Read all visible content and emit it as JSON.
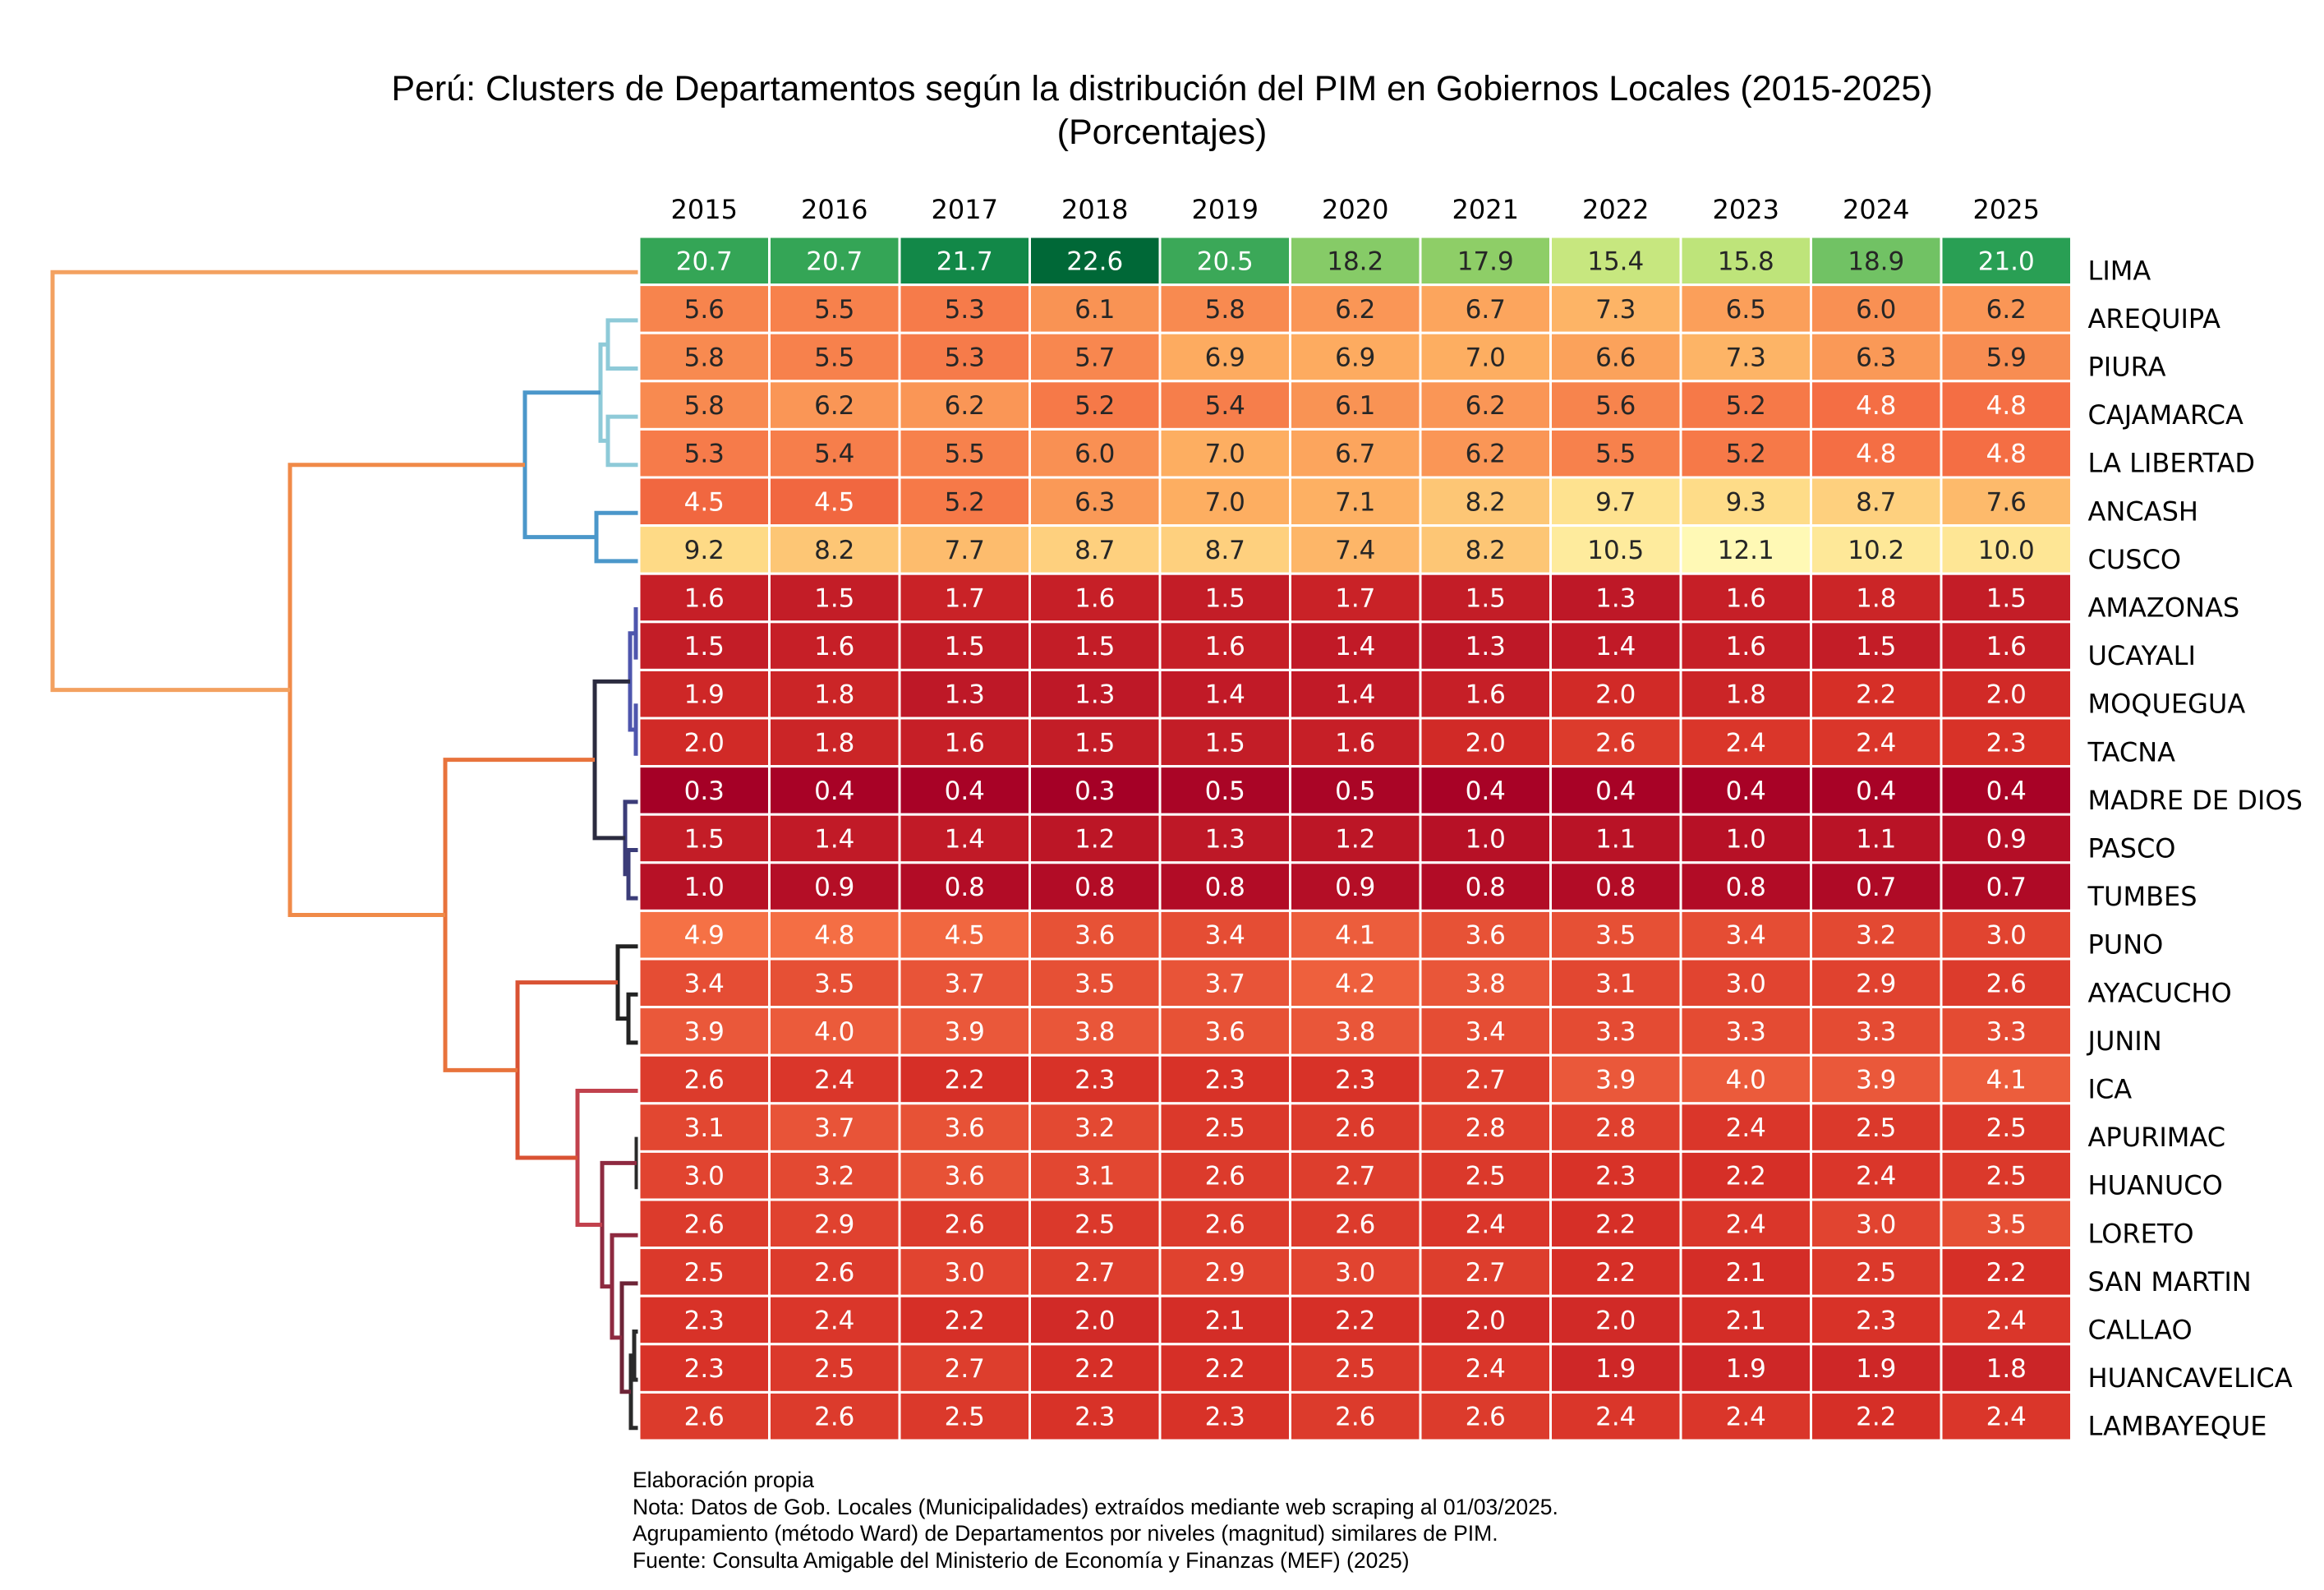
{
  "title": {
    "line1": "Perú: Clusters de Departamentos según la distribución del PIM en Gobiernos Locales (2015-2025)",
    "line2": "(Porcentajes)"
  },
  "notes": [
    "Elaboración propia",
    "Nota: Datos de Gob. Locales (Municipalidades) extraídos mediante web scraping al 01/03/2025.",
    "Agrupamiento (método Ward) de Departamentos por niveles (magnitud) similares de PIM.",
    "Fuente: Consulta Amigable del Ministerio de Economía y Finanzas (MEF) (2025)"
  ],
  "chart_data": {
    "type": "heatmap",
    "colormap": "RdYlGn",
    "color_range": [
      0.3,
      22.6
    ],
    "years": [
      "2015",
      "2016",
      "2017",
      "2018",
      "2019",
      "2020",
      "2021",
      "2022",
      "2023",
      "2024",
      "2025"
    ],
    "departments": [
      "LIMA",
      "AREQUIPA",
      "PIURA",
      "CAJAMARCA",
      "LA LIBERTAD",
      "ANCASH",
      "CUSCO",
      "AMAZONAS",
      "UCAYALI",
      "MOQUEGUA",
      "TACNA",
      "MADRE DE DIOS",
      "PASCO",
      "TUMBES",
      "PUNO",
      "AYACUCHO",
      "JUNIN",
      "ICA",
      "APURIMAC",
      "HUANUCO",
      "LORETO",
      "SAN MARTIN",
      "CALLAO",
      "HUANCAVELICA",
      "LAMBAYEQUE"
    ],
    "values": [
      [
        "20.7",
        "20.7",
        "21.7",
        "22.6",
        "20.5",
        "18.2",
        "17.9",
        "15.4",
        "15.8",
        "18.9",
        "21.0"
      ],
      [
        "5.6",
        "5.5",
        "5.3",
        "6.1",
        "5.8",
        "6.2",
        "6.7",
        "7.3",
        "6.5",
        "6.0",
        "6.2"
      ],
      [
        "5.8",
        "5.5",
        "5.3",
        "5.7",
        "6.9",
        "6.9",
        "7.0",
        "6.6",
        "7.3",
        "6.3",
        "5.9"
      ],
      [
        "5.8",
        "6.2",
        "6.2",
        "5.2",
        "5.4",
        "6.1",
        "6.2",
        "5.6",
        "5.2",
        "4.8",
        "4.8"
      ],
      [
        "5.3",
        "5.4",
        "5.5",
        "6.0",
        "7.0",
        "6.7",
        "6.2",
        "5.5",
        "5.2",
        "4.8",
        "4.8"
      ],
      [
        "4.5",
        "4.5",
        "5.2",
        "6.3",
        "7.0",
        "7.1",
        "8.2",
        "9.7",
        "9.3",
        "8.7",
        "7.6"
      ],
      [
        "9.2",
        "8.2",
        "7.7",
        "8.7",
        "8.7",
        "7.4",
        "8.2",
        "10.5",
        "12.1",
        "10.2",
        "10.0"
      ],
      [
        "1.6",
        "1.5",
        "1.7",
        "1.6",
        "1.5",
        "1.7",
        "1.5",
        "1.3",
        "1.6",
        "1.8",
        "1.5"
      ],
      [
        "1.5",
        "1.6",
        "1.5",
        "1.5",
        "1.6",
        "1.4",
        "1.3",
        "1.4",
        "1.6",
        "1.5",
        "1.6"
      ],
      [
        "1.9",
        "1.8",
        "1.3",
        "1.3",
        "1.4",
        "1.4",
        "1.6",
        "2.0",
        "1.8",
        "2.2",
        "2.0"
      ],
      [
        "2.0",
        "1.8",
        "1.6",
        "1.5",
        "1.5",
        "1.6",
        "2.0",
        "2.6",
        "2.4",
        "2.4",
        "2.3"
      ],
      [
        "0.3",
        "0.4",
        "0.4",
        "0.3",
        "0.5",
        "0.5",
        "0.4",
        "0.4",
        "0.4",
        "0.4",
        "0.4"
      ],
      [
        "1.5",
        "1.4",
        "1.4",
        "1.2",
        "1.3",
        "1.2",
        "1.0",
        "1.1",
        "1.0",
        "1.1",
        "0.9"
      ],
      [
        "1.0",
        "0.9",
        "0.8",
        "0.8",
        "0.8",
        "0.9",
        "0.8",
        "0.8",
        "0.8",
        "0.7",
        "0.7"
      ],
      [
        "4.9",
        "4.8",
        "4.5",
        "3.6",
        "3.4",
        "4.1",
        "3.6",
        "3.5",
        "3.4",
        "3.2",
        "3.0"
      ],
      [
        "3.4",
        "3.5",
        "3.7",
        "3.5",
        "3.7",
        "4.2",
        "3.8",
        "3.1",
        "3.0",
        "2.9",
        "2.6"
      ],
      [
        "3.9",
        "4.0",
        "3.9",
        "3.8",
        "3.6",
        "3.8",
        "3.4",
        "3.3",
        "3.3",
        "3.3",
        "3.3"
      ],
      [
        "2.6",
        "2.4",
        "2.2",
        "2.3",
        "2.3",
        "2.3",
        "2.7",
        "3.9",
        "4.0",
        "3.9",
        "4.1"
      ],
      [
        "3.1",
        "3.7",
        "3.6",
        "3.2",
        "2.5",
        "2.6",
        "2.8",
        "2.8",
        "2.4",
        "2.5",
        "2.5"
      ],
      [
        "3.0",
        "3.2",
        "3.6",
        "3.1",
        "2.6",
        "2.7",
        "2.5",
        "2.3",
        "2.2",
        "2.4",
        "2.5"
      ],
      [
        "2.6",
        "2.9",
        "2.6",
        "2.5",
        "2.6",
        "2.6",
        "2.4",
        "2.2",
        "2.4",
        "3.0",
        "3.5"
      ],
      [
        "2.5",
        "2.6",
        "3.0",
        "2.7",
        "2.9",
        "3.0",
        "2.7",
        "2.2",
        "2.1",
        "2.5",
        "2.2"
      ],
      [
        "2.3",
        "2.4",
        "2.2",
        "2.0",
        "2.1",
        "2.2",
        "2.0",
        "2.0",
        "2.1",
        "2.3",
        "2.4"
      ],
      [
        "2.3",
        "2.5",
        "2.7",
        "2.2",
        "2.2",
        "2.5",
        "2.4",
        "1.9",
        "1.9",
        "1.9",
        "1.8"
      ],
      [
        "2.6",
        "2.6",
        "2.5",
        "2.3",
        "2.3",
        "2.6",
        "2.6",
        "2.4",
        "2.4",
        "2.2",
        "2.4"
      ]
    ],
    "dendrogram": {
      "method": "ward",
      "orientation": "left",
      "merges": [
        {
          "a": 1,
          "b": 2,
          "color": "#8ecad8"
        },
        {
          "a": 3,
          "b": 4,
          "color": "#8ecad8"
        },
        {
          "a": "m0",
          "b": "m1",
          "color": "#8ecad8"
        },
        {
          "a": 5,
          "b": 6,
          "color": "#4b97ca"
        },
        {
          "a": "m2",
          "b": "m3",
          "color": "#4b97ca"
        },
        {
          "a": 7,
          "b": 8,
          "color": "#4e56ad"
        },
        {
          "a": 9,
          "b": 10,
          "color": "#4e56ad"
        },
        {
          "a": "m5",
          "b": "m6",
          "color": "#4e56ad"
        },
        {
          "a": 12,
          "b": 13,
          "color": "#3b3c78"
        },
        {
          "a": 11,
          "b": "m8",
          "color": "#3b3c78"
        },
        {
          "a": "m7",
          "b": "m9",
          "color": "#2b2b3f"
        },
        {
          "a": 15,
          "b": 16,
          "color": "#222222"
        },
        {
          "a": 14,
          "b": "m11",
          "color": "#222222"
        },
        {
          "a": 18,
          "b": 19,
          "color": "#2a2a2a"
        },
        {
          "a": 22,
          "b": 23,
          "color": "#2a2a2a"
        },
        {
          "a": "m14",
          "b": 24,
          "color": "#2a2a2a"
        },
        {
          "a": 21,
          "b": "m15",
          "color": "#6e2437"
        },
        {
          "a": 20,
          "b": "m16",
          "color": "#8e2a40"
        },
        {
          "a": "m13",
          "b": "m17",
          "color": "#8e2a40"
        },
        {
          "a": 17,
          "b": "m18",
          "color": "#c1414d"
        },
        {
          "a": "m12",
          "b": "m19",
          "color": "#d95233"
        },
        {
          "a": "m10",
          "b": "m20",
          "color": "#e8733c"
        },
        {
          "a": "m4",
          "b": "m21",
          "color": "#f08a48"
        },
        {
          "a": 0,
          "b": "m22",
          "color": "#f3a160"
        }
      ]
    }
  }
}
